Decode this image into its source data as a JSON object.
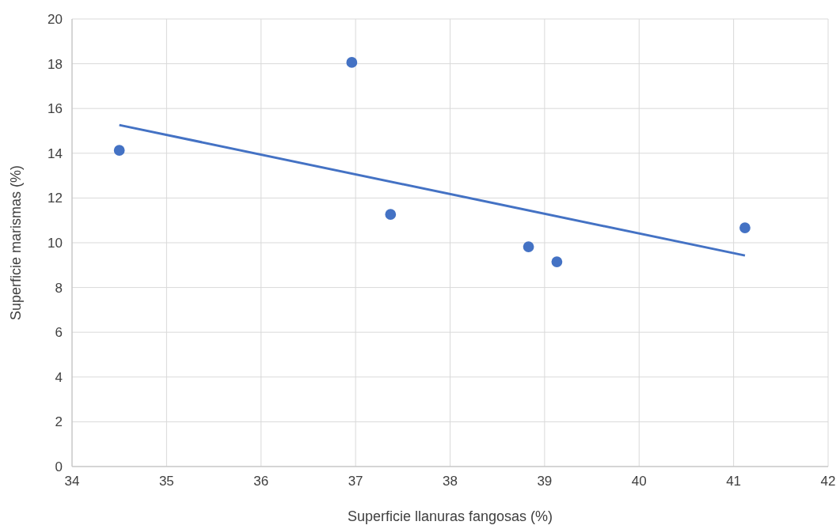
{
  "chart_data": {
    "type": "scatter",
    "xlabel": "Superficie llanuras fangosas (%)",
    "ylabel": "Superficie marismas (%)",
    "xlim": [
      34,
      42
    ],
    "xticks": [
      34,
      35,
      36,
      37,
      38,
      39,
      40,
      41,
      42
    ],
    "ylim": [
      0,
      20
    ],
    "yticks": [
      0,
      2,
      4,
      6,
      8,
      10,
      12,
      14,
      16,
      18,
      20
    ],
    "grid": true,
    "marker": "circle",
    "series": [
      {
        "type": "scatter",
        "color": "#4472c4",
        "x": [
          34.5,
          36.96,
          37.37,
          38.83,
          39.13,
          41.12
        ],
        "values": [
          14.13,
          18.06,
          11.27,
          9.82,
          9.15,
          10.67
        ]
      },
      {
        "type": "line",
        "color": "#4472c4",
        "x": [
          34.5,
          41.12
        ],
        "values": [
          15.26,
          9.43
        ],
        "marker": "none",
        "line_style": "solid"
      }
    ]
  }
}
